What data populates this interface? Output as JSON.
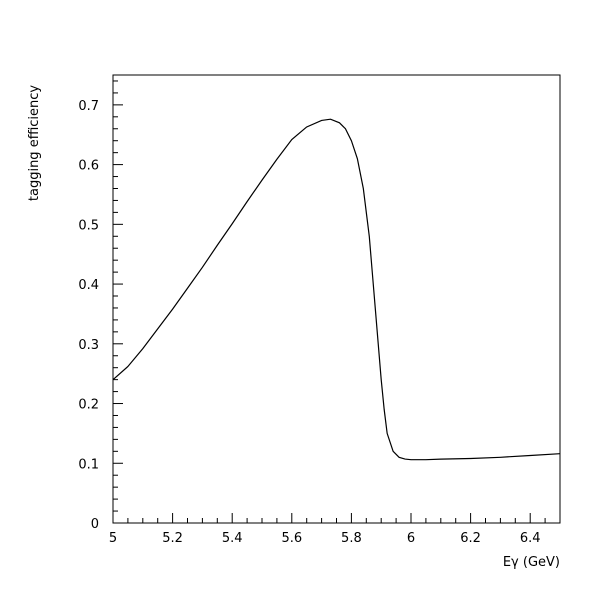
{
  "chart_data": {
    "type": "line",
    "title": "",
    "xlabel": "Eγ (GeV)",
    "ylabel": "tagging efficiency",
    "xlim": [
      5.0,
      6.5
    ],
    "ylim": [
      0.0,
      0.75
    ],
    "x_ticks": [
      5.0,
      5.2,
      5.4,
      5.6,
      5.8,
      6.0,
      6.2,
      6.4
    ],
    "x_tick_labels": [
      "5",
      "5.2",
      "5.4",
      "5.6",
      "5.8",
      "6",
      "6.2",
      "6.4"
    ],
    "y_ticks": [
      0.0,
      0.1,
      0.2,
      0.3,
      0.4,
      0.5,
      0.6,
      0.7
    ],
    "y_tick_labels": [
      "0",
      "0.1",
      "0.2",
      "0.3",
      "0.4",
      "0.5",
      "0.6",
      "0.7"
    ],
    "grid": false,
    "legend": "none",
    "line_color": "#000000",
    "series": [
      {
        "x": [
          5.0,
          5.05,
          5.1,
          5.15,
          5.2,
          5.25,
          5.3,
          5.35,
          5.4,
          5.45,
          5.5,
          5.55,
          5.6,
          5.65,
          5.7,
          5.73,
          5.76,
          5.78,
          5.8,
          5.82,
          5.84,
          5.86,
          5.87,
          5.88,
          5.89,
          5.9,
          5.91,
          5.92,
          5.94,
          5.96,
          5.98,
          6.0,
          6.05,
          6.1,
          6.2,
          6.3,
          6.4,
          6.5
        ],
        "y": [
          0.24,
          0.262,
          0.292,
          0.325,
          0.358,
          0.393,
          0.428,
          0.465,
          0.501,
          0.538,
          0.574,
          0.609,
          0.642,
          0.663,
          0.674,
          0.676,
          0.67,
          0.66,
          0.64,
          0.61,
          0.56,
          0.48,
          0.42,
          0.36,
          0.3,
          0.24,
          0.19,
          0.15,
          0.12,
          0.11,
          0.107,
          0.106,
          0.106,
          0.107,
          0.108,
          0.11,
          0.113,
          0.116
        ]
      }
    ]
  }
}
